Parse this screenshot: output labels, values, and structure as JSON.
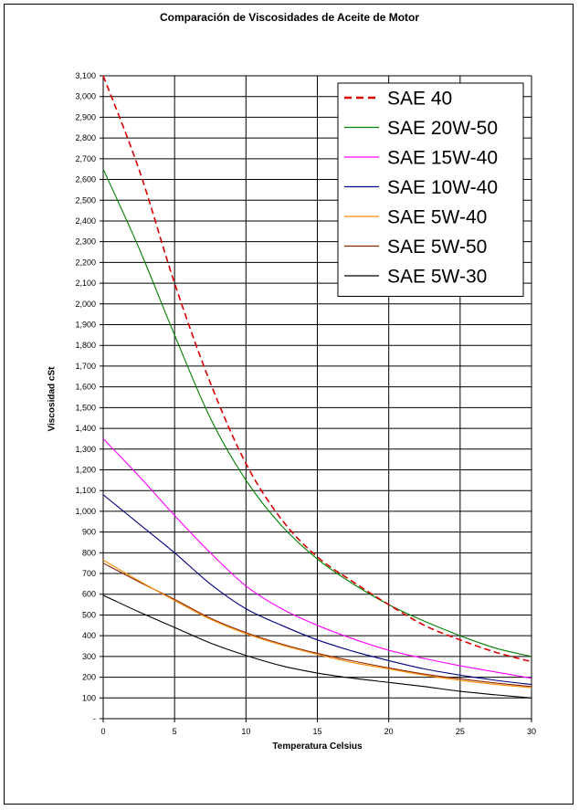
{
  "chart_data": {
    "type": "line",
    "title": "Comparación de Viscosidades de Aceite de Motor",
    "xlabel": "Temperatura Celsius",
    "ylabel": "Viscosidad cSt",
    "xlim": [
      0,
      30
    ],
    "ylim": [
      0,
      3100
    ],
    "x_ticks": [
      "0",
      "5",
      "10",
      "15",
      "20",
      "25",
      "30"
    ],
    "y_ticks": [
      "-",
      "100",
      "200",
      "300",
      "400",
      "500",
      "600",
      "700",
      "800",
      "900",
      "1,000",
      "1,100",
      "1,200",
      "1,300",
      "1,400",
      "1,500",
      "1,600",
      "1,700",
      "1,800",
      "1,900",
      "2,000",
      "2,100",
      "2,200",
      "2,300",
      "2,400",
      "2,500",
      "2,600",
      "2,700",
      "2,800",
      "2,900",
      "3,000",
      "3,100"
    ],
    "grid": true,
    "legend_position": "top-right",
    "x": [
      0,
      2.5,
      5,
      7.5,
      10,
      12.5,
      15,
      17.5,
      20,
      22.5,
      25,
      27.5,
      30
    ],
    "series": [
      {
        "name": "SAE 40",
        "color": "#dd0000",
        "dashed": true,
        "values": [
          3100,
          2650,
          2100,
          1620,
          1230,
          960,
          780,
          660,
          550,
          450,
          380,
          320,
          275
        ]
      },
      {
        "name": "SAE 20W-50",
        "color": "#008000",
        "dashed": false,
        "values": [
          2650,
          2270,
          1850,
          1450,
          1150,
          930,
          770,
          650,
          550,
          470,
          400,
          340,
          300
        ]
      },
      {
        "name": "SAE 15W-40",
        "color": "#ff00ff",
        "dashed": false,
        "values": [
          1350,
          1170,
          980,
          800,
          640,
          530,
          450,
          385,
          330,
          290,
          255,
          225,
          195
        ]
      },
      {
        "name": "SAE 10W-40",
        "color": "#000080",
        "dashed": false,
        "values": [
          1080,
          940,
          800,
          650,
          530,
          450,
          380,
          325,
          280,
          240,
          210,
          185,
          165
        ]
      },
      {
        "name": "SAE 5W-40",
        "color": "#ff8c00",
        "dashed": false,
        "values": [
          765,
          665,
          570,
          480,
          410,
          355,
          310,
          270,
          240,
          210,
          185,
          165,
          150
        ]
      },
      {
        "name": "SAE 5W-50",
        "color": "#8b2500",
        "dashed": false,
        "values": [
          750,
          660,
          575,
          485,
          415,
          360,
          315,
          278,
          245,
          215,
          192,
          172,
          155
        ]
      },
      {
        "name": "SAE 5W-30",
        "color": "#000000",
        "dashed": false,
        "values": [
          595,
          515,
          440,
          365,
          305,
          255,
          220,
          195,
          175,
          155,
          132,
          115,
          100
        ]
      }
    ]
  }
}
